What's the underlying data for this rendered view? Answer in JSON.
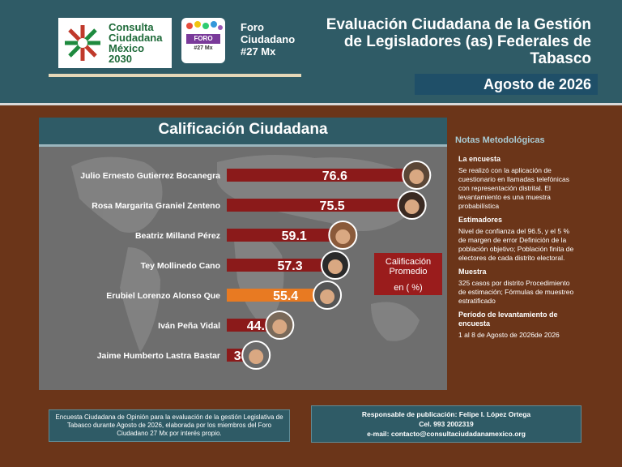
{
  "header": {
    "logo1_text": [
      "Consulta",
      "Ciudadana",
      "México",
      "2030"
    ],
    "logo2_band": "FORO",
    "logo2_sub": "#27 Mx",
    "foro_lines": [
      "Foro",
      "Ciudadano",
      "#27 Mx"
    ],
    "title_lines": [
      "Evaluación Ciudadana de la Gestión",
      "de Legisladores (as) Federales de",
      "Tabasco"
    ],
    "date": "Agosto de 2026"
  },
  "panel_title": "Calificación Ciudadana",
  "chart_data": {
    "type": "bar",
    "orientation": "horizontal",
    "title": "Calificación Ciudadana",
    "categories": [
      "Julio Ernesto Gutierrez Bocanegra",
      "Rosa Margarita Graniel Zenteno",
      "Beatriz Milland Pérez",
      "Tey Mollinedo Cano",
      "Erubiel Lorenzo Alonso Que",
      "Iván Peña Vidal",
      "Jaime Humberto Lastra Bastar"
    ],
    "values": [
      76.6,
      75.5,
      59.1,
      57.3,
      55.4,
      44.1,
      38.5
    ],
    "value_labels": [
      "76.6",
      "75.5",
      "59.1",
      "57.3",
      "55.4",
      "44.1",
      "38.5"
    ],
    "bar_color": "#8b1a1a",
    "highlight_index": 4,
    "highlight_color": "#e87a22",
    "xlim": [
      0,
      80
    ],
    "grid": false
  },
  "average_box": {
    "lines": [
      "Calificación",
      "Promedio"
    ],
    "unit": "en ( %)"
  },
  "notes": {
    "title": "Notas Metodológicas",
    "sections": [
      {
        "heading": "La encuesta",
        "text": "Se realizó con la aplicación de cuestionario en llamadas telefónicas con representación distrital. El levantamiento es una muestra probabilística"
      },
      {
        "heading": "Estimadores",
        "text": "Nivel de confianza del 96.5, y el 5 % de margen de error Definición de la población objetivo; Población finita de electores de cada distrito electoral."
      },
      {
        "heading": "Muestra",
        "text": "325 casos por distrito Procedimiento de estimación; Fórmulas de muestreo estratificado"
      },
      {
        "heading": "Período de levantamiento de encuesta",
        "text": "1 al 8 de Agosto de 2026de 2026"
      }
    ]
  },
  "footer": {
    "left": "Encuesta Ciudadana de Opinión para la evaluación de la gestión Legislativa de Tabasco durante Agosto de 2026, elaborada por los miembros del Foro Ciudadano 27 Mx por interés propio.",
    "right_lines": [
      "Responsable de publicación: Felipe I. López Ortega",
      "Cel. 993 2002319",
      "e-mail: contacto@consultaciudadanamexico.org"
    ]
  },
  "colors": {
    "background": "#6b3519",
    "header": "#2f5b66",
    "panel": "#6e6e6e"
  }
}
